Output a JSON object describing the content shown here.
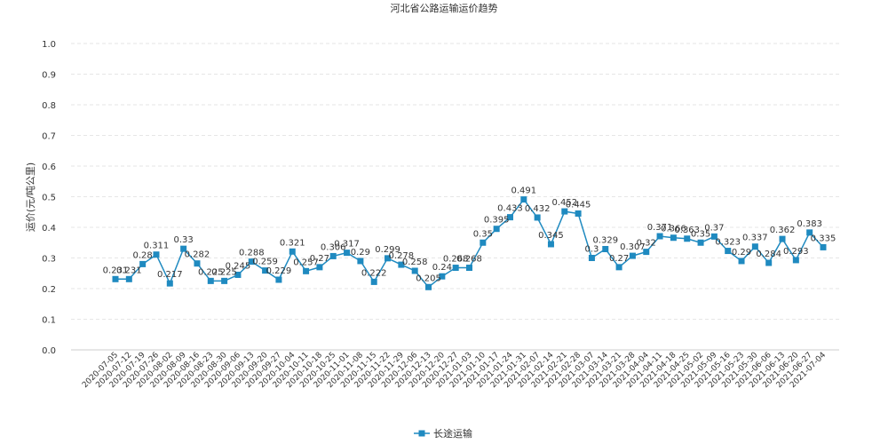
{
  "colors": {
    "series": "#1f8ac0",
    "grid": "#e6e6e6",
    "axis": "#cccccc",
    "text": "#333333"
  },
  "chart_data": {
    "type": "line",
    "title": "河北省公路运输运价趋势",
    "ylabel": "运价(元/吨公里)",
    "xlabel": "",
    "ylim": [
      0.0,
      1.0
    ],
    "yticks": [
      "0.0",
      "0.1",
      "0.2",
      "0.3",
      "0.4",
      "0.5",
      "0.6",
      "0.7",
      "0.8",
      "0.9",
      "1.0"
    ],
    "grid": "horizontal dashed",
    "legend_position": "bottom-center",
    "categories": [
      "2020-07-05",
      "2020-07-12",
      "2020-07-19",
      "2020-07-26",
      "2020-08-02",
      "2020-08-09",
      "2020-08-16",
      "2020-08-23",
      "2020-08-30",
      "2020-09-06",
      "2020-09-13",
      "2020-09-20",
      "2020-09-27",
      "2020-10-04",
      "2020-10-11",
      "2020-10-18",
      "2020-10-25",
      "2020-11-01",
      "2020-11-08",
      "2020-11-15",
      "2020-11-22",
      "2020-11-29",
      "2020-12-06",
      "2020-12-13",
      "2020-12-20",
      "2020-12-27",
      "2021-01-03",
      "2021-01-10",
      "2021-01-17",
      "2021-01-24",
      "2021-01-31",
      "2021-02-07",
      "2021-02-14",
      "2021-02-21",
      "2021-02-28",
      "2021-03-07",
      "2021-03-14",
      "2021-03-21",
      "2021-03-28",
      "2021-04-04",
      "2021-04-11",
      "2021-04-18",
      "2021-04-25",
      "2021-05-02",
      "2021-05-09",
      "2021-05-16",
      "2021-05-23",
      "2021-05-30",
      "2021-06-06",
      "2021-06-13",
      "2021-06-20",
      "2021-06-27",
      "2021-07-04"
    ],
    "series": [
      {
        "name": "长途运输",
        "values": [
          0.231,
          0.231,
          0.28,
          0.311,
          0.217,
          0.33,
          0.282,
          0.225,
          0.225,
          0.245,
          0.288,
          0.259,
          0.229,
          0.321,
          0.257,
          0.27,
          0.306,
          0.317,
          0.29,
          0.222,
          0.299,
          0.278,
          0.258,
          0.205,
          0.24,
          0.268,
          0.268,
          0.35,
          0.395,
          0.433,
          0.491,
          0.432,
          0.345,
          0.452,
          0.445,
          0.3,
          0.329,
          0.27,
          0.307,
          0.32,
          0.371,
          0.366,
          0.363,
          0.35,
          0.37,
          0.323,
          0.29,
          0.337,
          0.284,
          0.362,
          0.293,
          0.383,
          0.335
        ],
        "labels": [
          "0.231",
          "0.231",
          "0.28",
          "0.311",
          "0.217",
          "0.33",
          "0.282",
          "0.225",
          "0.225",
          "0.245",
          "0.288",
          "0.259",
          "0.229",
          "0.321",
          "0.257",
          "0.27",
          "0.306",
          "0.317",
          "0.29",
          "0.222",
          "0.299",
          "0.278",
          "0.258",
          "0.205",
          "0.24",
          "0.268",
          "0.268",
          "0.35",
          "0.395",
          "0.433",
          "0.491",
          "0.432",
          "0.345",
          "0.452",
          "0.445",
          "0.3",
          "0.329",
          "0.27",
          "0.307",
          "0.32",
          "0.371",
          "0.366",
          "0.363",
          "0.35",
          "0.37",
          "0.323",
          "0.29",
          "0.337",
          "0.284",
          "0.362",
          "0.293",
          "0.383",
          "0.335"
        ]
      }
    ]
  }
}
